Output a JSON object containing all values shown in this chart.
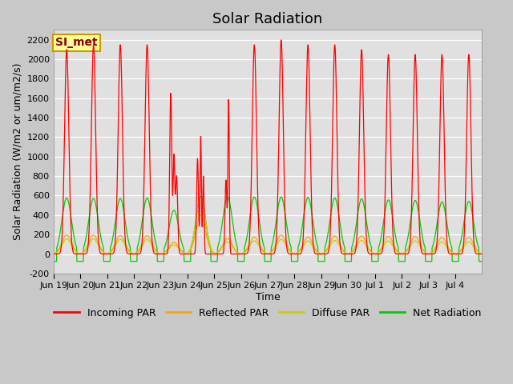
{
  "title": "Solar Radiation",
  "ylabel": "Solar Radiation (W/m2 or um/m2/s)",
  "xlabel": "Time",
  "ylim": [
    -200,
    2300
  ],
  "yticks": [
    -200,
    0,
    200,
    400,
    600,
    800,
    1000,
    1200,
    1400,
    1600,
    1800,
    2000,
    2200
  ],
  "legend_labels": [
    "Incoming PAR",
    "Reflected PAR",
    "Diffuse PAR",
    "Net Radiation"
  ],
  "legend_colors": [
    "#ff0000",
    "#ffa500",
    "#cccc00",
    "#00cc00"
  ],
  "line_colors": {
    "incoming": "#ff0000",
    "reflected": "#ffa500",
    "diffuse": "#cccc00",
    "net": "#00cc00"
  },
  "annotation_text": "SI_met",
  "annotation_bg": "#ffff99",
  "annotation_border": "#cc9900",
  "background_color": "#e0e0e0",
  "grid_color": "#ffffff",
  "num_days": 16,
  "x_tick_labels": [
    "Jun 19",
    "Jun 20",
    "Jun 21",
    "Jun 22",
    "Jun 23",
    "Jun 24",
    "Jun 25",
    "Jun 26",
    "Jun 27",
    "Jun 28",
    "Jun 29",
    "Jun 30",
    "Jul 1",
    "Jul 2",
    "Jul 3",
    "Jul 4"
  ],
  "title_fontsize": 13,
  "axis_label_fontsize": 9,
  "tick_fontsize": 8
}
